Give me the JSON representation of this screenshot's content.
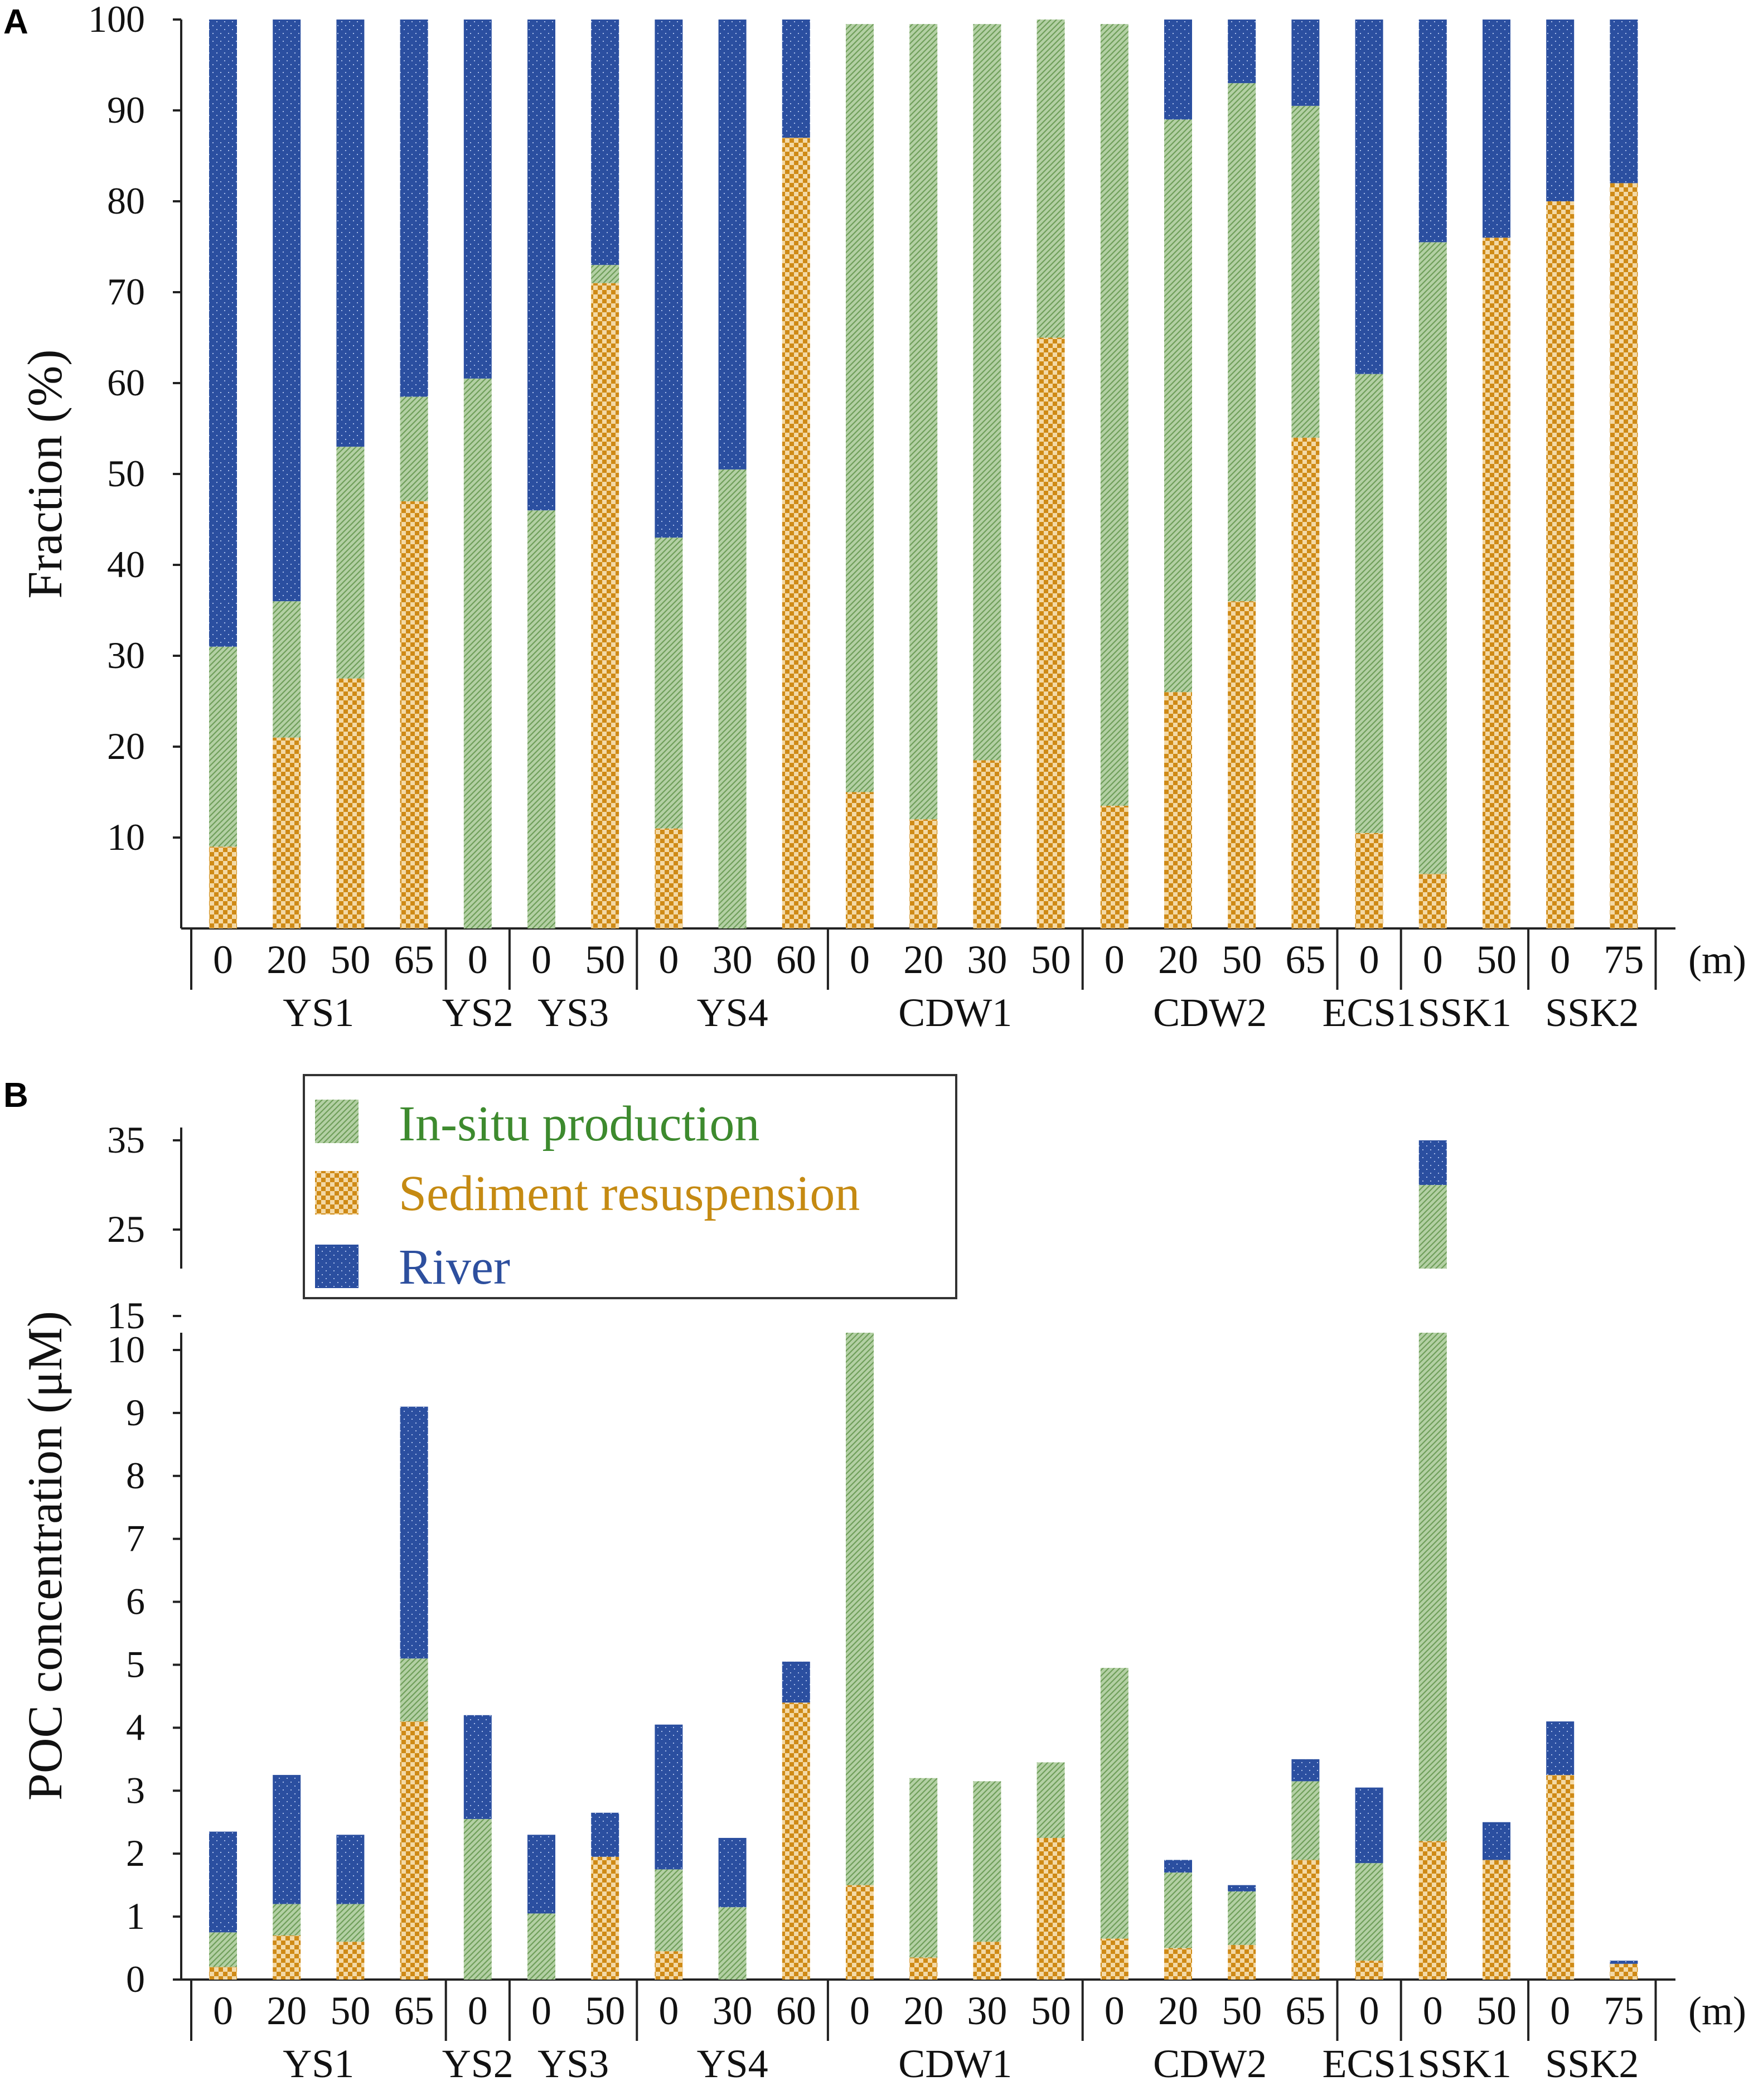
{
  "panels": {
    "a": "A",
    "b": "B"
  },
  "legend": {
    "items": [
      {
        "key": "insitu",
        "label": "In-situ production",
        "color": "#3d8a2e"
      },
      {
        "key": "sediment",
        "label": "Sediment resuspension",
        "color": "#c58a12"
      },
      {
        "key": "river",
        "label": "River",
        "color": "#2d4f9e"
      }
    ]
  },
  "colors": {
    "insitu": "#a6c796",
    "insitu_dark": "#7fae6a",
    "sediment": "#d0901e",
    "sediment_light": "#f6deb0",
    "river": "#2b4fa0",
    "river_dot": "#9fb6e6"
  },
  "chart_data": [
    {
      "type": "bar",
      "stacked": true,
      "ylabel": "Fraction (%)",
      "ylim": [
        0,
        100
      ],
      "yticks": [
        "10",
        "20",
        "30",
        "40",
        "50",
        "60",
        "70",
        "80",
        "90",
        "100"
      ],
      "unit_label": "(m)",
      "depths": [
        "0",
        "20",
        "50",
        "65",
        "0",
        "0",
        "50",
        "0",
        "30",
        "60",
        "0",
        "20",
        "30",
        "50",
        "0",
        "20",
        "50",
        "65",
        "0",
        "0",
        "50",
        "0",
        "75"
      ],
      "stations": [
        {
          "name": "YS1",
          "n": 4
        },
        {
          "name": "YS2",
          "n": 1
        },
        {
          "name": "YS3",
          "n": 2
        },
        {
          "name": "YS4",
          "n": 3
        },
        {
          "name": "CDW1",
          "n": 4
        },
        {
          "name": "CDW2",
          "n": 4
        },
        {
          "name": "ECS1",
          "n": 1
        },
        {
          "name": "SSK1",
          "n": 2
        },
        {
          "name": "SSK2",
          "n": 2
        }
      ],
      "series": [
        {
          "name": "Sediment resuspension",
          "values": [
            9,
            21,
            27.5,
            47,
            0,
            0,
            71,
            11,
            0,
            87,
            15,
            12,
            18.5,
            65,
            13.5,
            26,
            36,
            54,
            10.5,
            6,
            76,
            80,
            82
          ]
        },
        {
          "name": "In-situ production",
          "values": [
            22,
            15,
            25.5,
            11.5,
            60.5,
            46,
            2,
            32,
            50.5,
            0,
            84.5,
            87.5,
            81,
            35,
            86,
            63,
            57,
            36.5,
            50.5,
            69.5,
            0,
            0,
            0
          ]
        },
        {
          "name": "River",
          "values": [
            69,
            64,
            47,
            41.5,
            39.5,
            54,
            27,
            57,
            49.5,
            13,
            0,
            0,
            0,
            0,
            0,
            11,
            7,
            9.5,
            39,
            24.5,
            24,
            20,
            18
          ]
        }
      ]
    },
    {
      "type": "bar",
      "stacked": true,
      "ylabel": "POC concentration (μM)",
      "axis_break": true,
      "yticks_lower": [
        "0",
        "1",
        "2",
        "3",
        "4",
        "5",
        "6",
        "7",
        "8",
        "9",
        "10",
        "15"
      ],
      "yticks_upper": [
        "25",
        "35"
      ],
      "unit_label": "(m)",
      "depths": [
        "0",
        "20",
        "50",
        "65",
        "0",
        "0",
        "50",
        "0",
        "30",
        "60",
        "0",
        "20",
        "30",
        "50",
        "0",
        "20",
        "50",
        "65",
        "0",
        "0",
        "50",
        "0",
        "75"
      ],
      "stations": [
        {
          "name": "YS1",
          "n": 4
        },
        {
          "name": "YS2",
          "n": 1
        },
        {
          "name": "YS3",
          "n": 2
        },
        {
          "name": "YS4",
          "n": 3
        },
        {
          "name": "CDW1",
          "n": 4
        },
        {
          "name": "CDW2",
          "n": 4
        },
        {
          "name": "ECS1",
          "n": 1
        },
        {
          "name": "SSK1",
          "n": 2
        },
        {
          "name": "SSK2",
          "n": 2
        }
      ],
      "series": [
        {
          "name": "Sediment resuspension",
          "values": [
            0.2,
            0.7,
            0.6,
            4.1,
            0,
            0,
            1.95,
            0.45,
            0,
            4.4,
            1.5,
            0.35,
            0.6,
            2.25,
            0.65,
            0.5,
            0.55,
            1.9,
            0.3,
            2.2,
            1.9,
            3.25,
            0.25
          ]
        },
        {
          "name": "In-situ production",
          "values": [
            0.55,
            0.5,
            0.6,
            1.0,
            2.55,
            1.05,
            0,
            1.3,
            1.15,
            0,
            13.3,
            2.85,
            2.55,
            1.2,
            4.3,
            1.2,
            0.85,
            1.25,
            1.55,
            27.8,
            0,
            0,
            0
          ]
        },
        {
          "name": "River",
          "values": [
            1.6,
            2.05,
            1.1,
            4.0,
            1.65,
            1.25,
            0.7,
            2.3,
            1.1,
            0.65,
            0,
            0,
            0,
            0,
            0,
            0.2,
            0.1,
            0.35,
            1.2,
            5.0,
            0.6,
            0.85,
            0.05
          ]
        }
      ]
    }
  ]
}
